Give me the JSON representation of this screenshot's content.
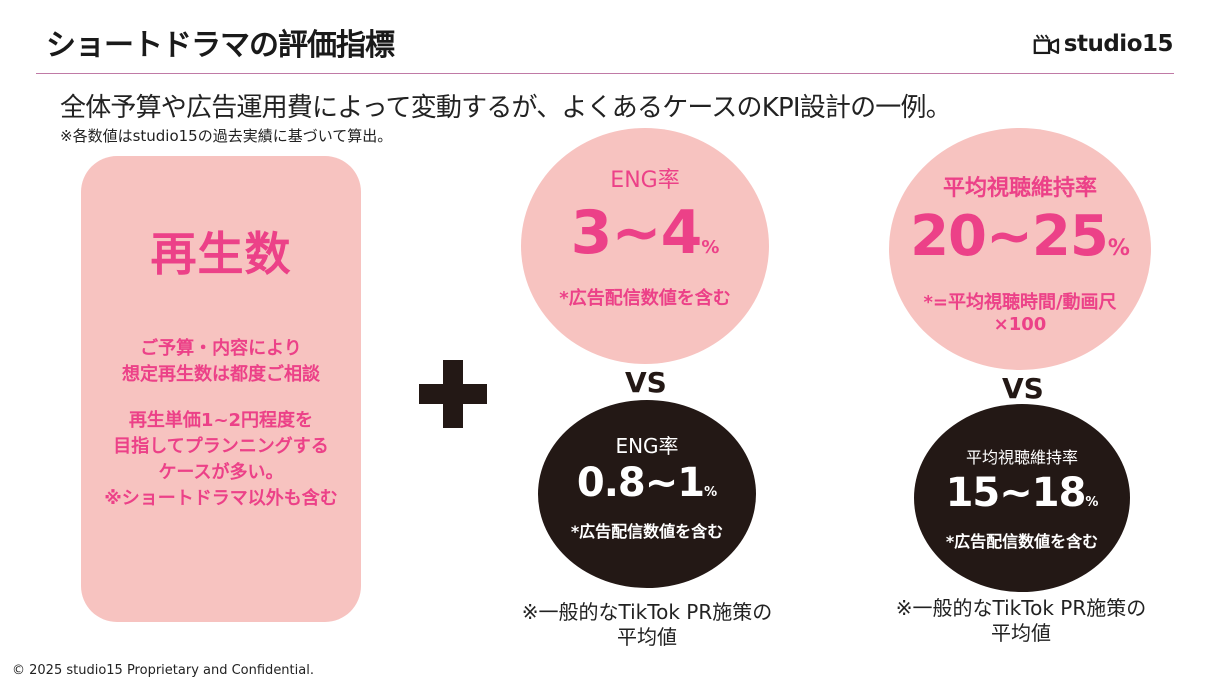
{
  "header": {
    "title": "ショートドラマの評価指標",
    "logo_text": "studio15"
  },
  "intro": {
    "subtitle": "全体予算や広告運用費によって変動するが、よくあるケースのKPI設計の一例。",
    "note": "※各数値はstudio15の過去実績に基づいて算出。"
  },
  "views_card": {
    "heading": "再生数",
    "para1_line1": "ご予算・内容により",
    "para1_line2": "想定再生数は都度ご相談",
    "para2_line1": "再生単価1~2円程度を",
    "para2_line2": "目指してプランニングする",
    "para2_line3": "ケースが多い。",
    "para2_line4": "※ショートドラマ以外も含む"
  },
  "eng": {
    "target": {
      "label": "ENG率",
      "value": "3~4",
      "unit": "%",
      "note": "*広告配信数値を含む"
    },
    "vs": "VS",
    "benchmark": {
      "label": "ENG率",
      "value": "0.8~1",
      "unit": "%",
      "note": "*広告配信数値を含む"
    },
    "footnote_line1": "※一般的なTikTok PR施策の",
    "footnote_line2": "平均値"
  },
  "retention": {
    "target": {
      "label": "平均視聴維持率",
      "value": "20~25",
      "unit": "%",
      "note_line1": "*=平均視聴時間/動画尺",
      "note_line2": "×100"
    },
    "vs": "VS",
    "benchmark": {
      "label": "平均視聴維持率",
      "value": "15~18",
      "unit": "%",
      "note": "*広告配信数値を含む"
    },
    "footnote_line1": "※一般的なTikTok PR施策の",
    "footnote_line2": "平均値"
  },
  "footer": {
    "copyright": "© 2025 studio15 Proprietary and Confidential."
  },
  "colors": {
    "accent_pink": "#ec4188",
    "card_pink": "#f7c3c0",
    "dark": "#231815",
    "rule": "#c07aa6"
  },
  "icons": {
    "logo_icon": "clapper-camera-icon",
    "plus_icon": "plus-icon"
  }
}
